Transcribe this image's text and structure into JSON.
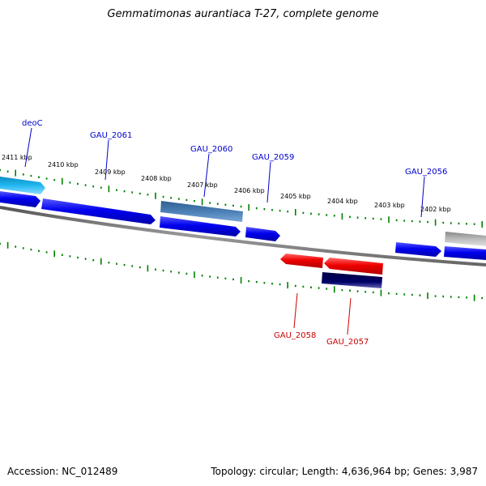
{
  "title": "Gemmatimonas aurantiaca T-27, complete genome",
  "footer": {
    "accession": "Accession: NC_012489",
    "summary": "Topology: circular; Length: 4,636,964 bp; Genes: 3,987"
  },
  "colors": {
    "forward_gene": "#0000ee",
    "reverse_gene": "#ee0000",
    "forward_label": "#0000cc",
    "reverse_label": "#cc0000",
    "tick": "#008000",
    "backbone": "#808080",
    "steel_gene": "#4a7fb5",
    "cyan_gene": "#22b8f0",
    "navy_gene": "#000066",
    "gray_gene": "#bbbbbb"
  },
  "ticks": [
    "2411 kbp",
    "2410 kbp",
    "2409 kbp",
    "2408 kbp",
    "2407 kbp",
    "2406 kbp",
    "2405 kbp",
    "2404 kbp",
    "2403 kbp",
    "2402 kbp"
  ],
  "labels": {
    "deoC": "deoC",
    "gau2061": "GAU_2061",
    "gau2060": "GAU_2060",
    "gau2059": "GAU_2059",
    "gau2056": "GAU_2056",
    "gau2058": "GAU_2058",
    "gau2057": "GAU_2057"
  }
}
